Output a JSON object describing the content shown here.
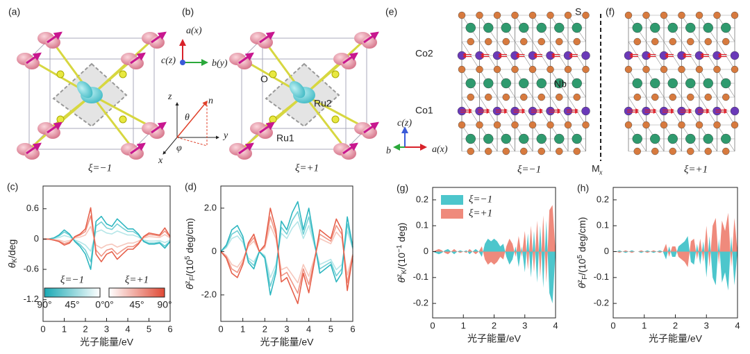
{
  "figure": {
    "texts": [
      "(a)",
      "ξ=−1",
      "(b)",
      "a(x)",
      "c(z)",
      "b(y)",
      "z",
      "n",
      "θ",
      "φ",
      "y",
      "x",
      "O",
      "Ru2",
      "Ru1",
      "ξ=+1",
      "(e)",
      "S",
      "(f)",
      "Co2",
      "Nb",
      "Co1",
      "c(z)",
      "b",
      "a(x)",
      "ξ=−1",
      "M",
      "x",
      "ξ=+1"
    ]
  },
  "chart_data": [
    {
      "type": "line",
      "panel": "(c)",
      "xlabel": "光子能量/eV",
      "ylabel": [
        {
          "text": "θ"
        },
        {
          "text": "K",
          "script": "sub"
        },
        {
          "text": "/deg"
        }
      ],
      "xlim": [
        0,
        6
      ],
      "ylim": [
        -1.63,
        1.05
      ],
      "xticks": [
        0,
        1,
        2,
        3,
        4,
        5,
        6
      ],
      "yticks": [
        0.6,
        0,
        -0.6,
        -1.2
      ],
      "x": [
        0,
        0.25,
        0.5,
        0.75,
        1,
        1.25,
        1.5,
        1.75,
        2,
        2.25,
        2.5,
        2.75,
        3,
        3.25,
        3.5,
        3.75,
        4,
        4.25,
        4.5,
        4.75,
        5,
        5.25,
        5.5,
        5.75,
        6
      ],
      "series": [
        {
          "color": "#b5e6e8",
          "values": [
            0,
            0,
            0.01,
            0.03,
            0.07,
            0.04,
            -0.02,
            -0.06,
            -0.12,
            -0.24,
            0.14,
            0.18,
            0.12,
            0.1,
            0.16,
            0.12,
            0.08,
            0.08,
            0.04,
            -0.02,
            -0.04,
            -0.04,
            -0.03,
            -0.07,
            -0.02
          ]
        },
        {
          "color": "#74d0d5",
          "values": [
            0,
            0,
            0.02,
            0.06,
            0.14,
            0.08,
            -0.04,
            -0.11,
            -0.22,
            -0.45,
            0.26,
            0.34,
            0.22,
            0.19,
            0.3,
            0.22,
            0.15,
            0.15,
            0.08,
            -0.04,
            -0.08,
            -0.08,
            -0.06,
            -0.14,
            -0.04
          ]
        },
        {
          "color": "#2db6c0",
          "values": [
            0,
            0,
            0.02,
            0.08,
            0.18,
            0.1,
            -0.05,
            -0.15,
            -0.3,
            -0.6,
            0.35,
            0.45,
            0.3,
            0.25,
            0.4,
            0.3,
            0.2,
            0.2,
            0.1,
            -0.05,
            -0.1,
            -0.1,
            -0.08,
            -0.18,
            -0.05
          ]
        },
        {
          "color": "#f6c6bb",
          "values": [
            0,
            0,
            -0.01,
            -0.02,
            -0.05,
            -0.03,
            0.02,
            0.04,
            0.08,
            0.25,
            -0.12,
            -0.18,
            -0.12,
            -0.1,
            -0.16,
            -0.12,
            -0.08,
            -0.08,
            -0.04,
            0.02,
            0.05,
            0.04,
            0.03,
            0.09,
            0.02
          ]
        },
        {
          "color": "#f09585",
          "values": [
            0,
            0,
            -0.02,
            -0.04,
            -0.09,
            -0.06,
            0.04,
            0.08,
            0.15,
            0.46,
            -0.22,
            -0.34,
            -0.22,
            -0.19,
            -0.3,
            -0.22,
            -0.15,
            -0.15,
            -0.08,
            0.04,
            0.09,
            0.08,
            0.06,
            0.16,
            0.04
          ]
        },
        {
          "color": "#e6604b",
          "values": [
            0,
            0,
            -0.02,
            -0.05,
            -0.12,
            -0.08,
            0.05,
            0.1,
            0.2,
            0.62,
            -0.3,
            -0.45,
            -0.3,
            -0.25,
            -0.4,
            -0.3,
            -0.2,
            -0.2,
            -0.1,
            0.05,
            0.12,
            0.1,
            0.08,
            0.22,
            0.05
          ]
        }
      ],
      "colorbars": [
        {
          "name": "ξ=−1",
          "colors": [
            "#1aa9b4",
            "#ffffff"
          ],
          "labels": [
            "90°",
            "45°",
            "0°"
          ]
        },
        {
          "name": "ξ=+1",
          "colors": [
            "#ffffff",
            "#e04a36"
          ],
          "labels": [
            "0°",
            "45°",
            "90°"
          ]
        }
      ]
    },
    {
      "type": "line",
      "panel": "(d)",
      "xlabel": "光子能量/eV",
      "ylabel": [
        {
          "text": "θ"
        },
        {
          "text": "z",
          "script": "sup"
        },
        {
          "text": "F",
          "script": "sub"
        },
        {
          "text": "/(10"
        },
        {
          "text": "5",
          "script": "sup"
        },
        {
          "text": " deg/cm)"
        }
      ],
      "xlim": [
        0,
        6
      ],
      "ylim": [
        -3.22,
        3.02
      ],
      "xticks": [
        0,
        1,
        2,
        3,
        4,
        5,
        6
      ],
      "yticks": [
        {
          "value": 2,
          "label": "2.0"
        },
        0,
        {
          "value": -2,
          "label": "-2.0"
        }
      ],
      "x": [
        0,
        0.25,
        0.5,
        0.75,
        1,
        1.25,
        1.5,
        1.75,
        2,
        2.25,
        2.5,
        2.75,
        3,
        3.25,
        3.5,
        3.75,
        4,
        4.25,
        4.5,
        4.75,
        5,
        5.25,
        5.5,
        5.75,
        6
      ],
      "series": [
        {
          "color": "#b5e6e8",
          "values": [
            0,
            0.18,
            0.6,
            0.72,
            0.42,
            -0.3,
            -0.48,
            0,
            -0.18,
            -1.2,
            -0.6,
            0.84,
            0.6,
            1.08,
            1.38,
            0.6,
            1.2,
            0.3,
            -0.6,
            -0.48,
            -0.36,
            -0.84,
            -0.6,
            0.96,
            0.12
          ]
        },
        {
          "color": "#74d0d5",
          "values": [
            0,
            0.24,
            0.8,
            0.96,
            0.56,
            -0.4,
            -0.64,
            0,
            -0.24,
            -1.6,
            -0.8,
            1.12,
            0.8,
            1.44,
            1.84,
            0.8,
            1.6,
            0.4,
            -0.8,
            -0.64,
            -0.48,
            -1.12,
            -0.8,
            1.28,
            0.16
          ]
        },
        {
          "color": "#2db6c0",
          "values": [
            0,
            0.3,
            1,
            1.2,
            0.7,
            -0.5,
            -0.8,
            0,
            -0.3,
            -2,
            -1,
            1.4,
            1,
            1.8,
            2.3,
            1,
            2,
            0.5,
            -1,
            -0.8,
            -0.6,
            -1.4,
            -1,
            1.6,
            0.2
          ]
        },
        {
          "color": "#f6c6bb",
          "values": [
            0,
            -0.18,
            -0.6,
            -0.72,
            -0.36,
            0.24,
            0.48,
            0,
            0.18,
            1.2,
            0.6,
            -0.84,
            -0.72,
            -1.08,
            -1.44,
            -0.6,
            -1.14,
            -0.3,
            0.6,
            0.48,
            0.36,
            0.9,
            0.6,
            -1.08,
            -0.12
          ]
        },
        {
          "color": "#f09585",
          "values": [
            0,
            -0.24,
            -0.8,
            -0.96,
            -0.48,
            0.32,
            0.64,
            0,
            0.24,
            1.6,
            0.8,
            -1.12,
            -0.96,
            -1.44,
            -1.92,
            -0.8,
            -1.52,
            -0.4,
            0.8,
            0.64,
            0.48,
            1.2,
            0.8,
            -1.44,
            -0.16
          ]
        },
        {
          "color": "#e6604b",
          "values": [
            0,
            -0.3,
            -1,
            -1.2,
            -0.6,
            0.4,
            0.8,
            0,
            0.3,
            2,
            1,
            -1.4,
            -1.2,
            -1.8,
            -2.4,
            -1,
            -1.9,
            -0.5,
            1,
            0.8,
            0.6,
            1.5,
            1,
            -1.8,
            -0.2
          ]
        }
      ]
    },
    {
      "type": "area",
      "panel": "(g)",
      "xlabel": "光子能量/eV",
      "ylabel": [
        {
          "text": "θ"
        },
        {
          "text": "z",
          "script": "sup"
        },
        {
          "text": "K",
          "script": "sub"
        },
        {
          "text": "/(10"
        },
        {
          "text": "−1",
          "script": "sup"
        },
        {
          "text": " deg)"
        }
      ],
      "xlim": [
        0,
        4
      ],
      "ylim": [
        -0.256,
        0.248
      ],
      "xticks": [
        0,
        1,
        2,
        3,
        4
      ],
      "yticks": [
        0.2,
        0.1,
        0,
        -0.1,
        -0.2
      ],
      "x": [
        0,
        0.1,
        0.2,
        0.3,
        0.4,
        0.5,
        0.6,
        0.7,
        0.8,
        0.9,
        1,
        1.1,
        1.2,
        1.3,
        1.4,
        1.5,
        1.6,
        1.7,
        1.8,
        1.9,
        2,
        2.1,
        2.2,
        2.3,
        2.4,
        2.5,
        2.6,
        2.7,
        2.8,
        2.9,
        3,
        3.1,
        3.2,
        3.3,
        3.4,
        3.5,
        3.6,
        3.7,
        3.8,
        3.9,
        4
      ],
      "series": [
        {
          "name": "ξ=−1",
          "color": "#4dc6cc",
          "values": [
            0,
            -0.005,
            -0.01,
            -0.005,
            0.005,
            0.01,
            0,
            -0.01,
            0,
            0.005,
            0,
            0.005,
            -0.01,
            0,
            0.01,
            0,
            -0.02,
            0.03,
            0.05,
            0.04,
            0.05,
            0.04,
            0.02,
            0.03,
            -0.02,
            -0.05,
            -0.03,
            0.02,
            -0.06,
            0.02,
            -0.08,
            0.07,
            -0.1,
            0.08,
            -0.12,
            0.1,
            -0.14,
            0.12,
            -0.16,
            -0.2,
            0
          ]
        },
        {
          "name": "ξ=+1",
          "color": "#ef8a7c",
          "values": [
            0,
            0.005,
            0.01,
            0.005,
            -0.005,
            -0.01,
            0,
            0.01,
            0,
            -0.005,
            0,
            -0.005,
            0.01,
            0,
            -0.01,
            0,
            0.02,
            -0.03,
            -0.05,
            -0.04,
            -0.05,
            -0.04,
            -0.02,
            -0.03,
            0.02,
            0.05,
            0.03,
            -0.02,
            0.06,
            -0.02,
            0.08,
            -0.07,
            0.1,
            -0.08,
            0.12,
            -0.1,
            0.14,
            -0.12,
            0.16,
            0.18,
            0
          ]
        }
      ]
    },
    {
      "type": "area",
      "panel": "(h)",
      "xlabel": "光子能量/eV",
      "ylabel": [
        {
          "text": "θ"
        },
        {
          "text": "z",
          "script": "sup"
        },
        {
          "text": "F",
          "script": "sub"
        },
        {
          "text": "/(10"
        },
        {
          "text": "5",
          "script": "sup"
        },
        {
          "text": " deg/cm)"
        }
      ],
      "xlim": [
        0,
        4
      ],
      "ylim": [
        -0.256,
        0.248
      ],
      "xticks": [
        0,
        1,
        2,
        3,
        4
      ],
      "yticks": [
        0.2,
        0.1,
        0,
        -0.1,
        -0.2
      ],
      "x": [
        0,
        0.1,
        0.2,
        0.3,
        0.4,
        0.5,
        0.6,
        0.7,
        0.8,
        0.9,
        1,
        1.1,
        1.2,
        1.3,
        1.4,
        1.5,
        1.6,
        1.7,
        1.8,
        1.9,
        2,
        2.1,
        2.2,
        2.3,
        2.4,
        2.5,
        2.6,
        2.7,
        2.8,
        2.9,
        3,
        3.1,
        3.2,
        3.3,
        3.4,
        3.5,
        3.6,
        3.7,
        3.8,
        3.9,
        4
      ],
      "series": [
        {
          "color": "#4dc6cc",
          "values": [
            0,
            0,
            0.005,
            0,
            -0.005,
            0,
            0.005,
            0,
            0,
            -0.005,
            0,
            0.005,
            0,
            -0.005,
            0,
            0.005,
            0,
            -0.03,
            0.02,
            -0.02,
            -0.02,
            0.02,
            0.03,
            0.04,
            0.06,
            -0.04,
            -0.05,
            0.03,
            -0.05,
            0.04,
            -0.1,
            0.06,
            -0.1,
            -0.13,
            0.05,
            -0.12,
            -0.08,
            -0.15,
            0.06,
            -0.13,
            0
          ]
        },
        {
          "color": "#ef8a7c",
          "values": [
            0,
            0,
            -0.005,
            0,
            0.005,
            0,
            -0.005,
            0,
            0,
            0.005,
            0,
            -0.005,
            0,
            0.005,
            0,
            -0.005,
            0,
            0.03,
            -0.02,
            0.02,
            0.02,
            -0.02,
            -0.03,
            -0.04,
            -0.06,
            0.04,
            0.05,
            -0.03,
            0.05,
            -0.04,
            0.1,
            -0.06,
            0.1,
            0.13,
            -0.05,
            0.12,
            0.08,
            0.15,
            -0.06,
            0.13,
            0
          ]
        }
      ]
    }
  ]
}
